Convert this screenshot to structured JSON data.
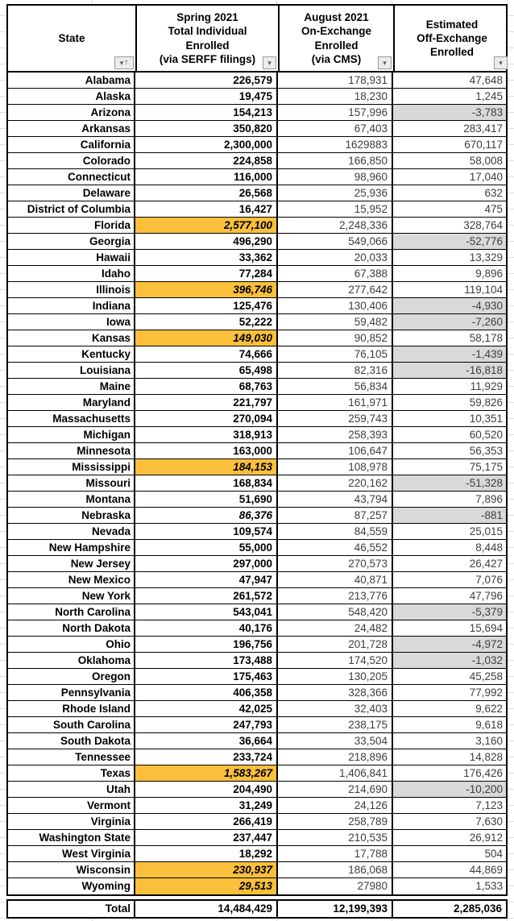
{
  "colors": {
    "highlight_orange": "#FAC03C",
    "negative_gray": "#D9D9D9",
    "border_black": "#000000"
  },
  "table": {
    "columns": [
      {
        "label": "State",
        "filter_icon": "filter-sorted-ascending"
      },
      {
        "label": "Spring 2021\nTotal Individual\nEnrolled\n(via SERFF filings)",
        "filter_icon": "filter-dropdown"
      },
      {
        "label": "August 2021\nOn-Exchange\nEnrolled\n(via CMS)",
        "filter_icon": "filter-dropdown"
      },
      {
        "label": "Estimated\nOff-Exchange\nEnrolled",
        "filter_icon": "filter-dropdown"
      }
    ],
    "rows": [
      {
        "state": "Alabama",
        "spring": "226,579",
        "august": "178,931",
        "estimated": "47,648",
        "spring_style": "normal",
        "estimated_negative": false
      },
      {
        "state": "Alaska",
        "spring": "19,475",
        "august": "18,230",
        "estimated": "1,245",
        "spring_style": "normal",
        "estimated_negative": false
      },
      {
        "state": "Arizona",
        "spring": "154,213",
        "august": "157,996",
        "estimated": "-3,783",
        "spring_style": "normal",
        "estimated_negative": true
      },
      {
        "state": "Arkansas",
        "spring": "350,820",
        "august": "67,403",
        "estimated": "283,417",
        "spring_style": "normal",
        "estimated_negative": false
      },
      {
        "state": "California",
        "spring": "2,300,000",
        "august": "1629883",
        "estimated": "670,117",
        "spring_style": "normal",
        "estimated_negative": false
      },
      {
        "state": "Colorado",
        "spring": "224,858",
        "august": "166,850",
        "estimated": "58,008",
        "spring_style": "normal",
        "estimated_negative": false
      },
      {
        "state": "Connecticut",
        "spring": "116,000",
        "august": "98,960",
        "estimated": "17,040",
        "spring_style": "normal",
        "estimated_negative": false
      },
      {
        "state": "Delaware",
        "spring": "26,568",
        "august": "25,936",
        "estimated": "632",
        "spring_style": "normal",
        "estimated_negative": false
      },
      {
        "state": "District of Columbia",
        "spring": "16,427",
        "august": "15,952",
        "estimated": "475",
        "spring_style": "normal",
        "estimated_negative": false
      },
      {
        "state": "Florida",
        "spring": "2,577,100",
        "august": "2,248,336",
        "estimated": "328,764",
        "spring_style": "highlight",
        "estimated_negative": false
      },
      {
        "state": "Georgia",
        "spring": "496,290",
        "august": "549,066",
        "estimated": "-52,776",
        "spring_style": "normal",
        "estimated_negative": true
      },
      {
        "state": "Hawaii",
        "spring": "33,362",
        "august": "20,033",
        "estimated": "13,329",
        "spring_style": "normal",
        "estimated_negative": false
      },
      {
        "state": "Idaho",
        "spring": "77,284",
        "august": "67,388",
        "estimated": "9,896",
        "spring_style": "normal",
        "estimated_negative": false
      },
      {
        "state": "Illinois",
        "spring": "396,746",
        "august": "277,642",
        "estimated": "119,104",
        "spring_style": "highlight",
        "estimated_negative": false
      },
      {
        "state": "Indiana",
        "spring": "125,476",
        "august": "130,406",
        "estimated": "-4,930",
        "spring_style": "normal",
        "estimated_negative": true
      },
      {
        "state": "Iowa",
        "spring": "52,222",
        "august": "59,482",
        "estimated": "-7,260",
        "spring_style": "normal",
        "estimated_negative": true
      },
      {
        "state": "Kansas",
        "spring": "149,030",
        "august": "90,852",
        "estimated": "58,178",
        "spring_style": "highlight",
        "estimated_negative": false
      },
      {
        "state": "Kentucky",
        "spring": "74,666",
        "august": "76,105",
        "estimated": "-1,439",
        "spring_style": "normal",
        "estimated_negative": true
      },
      {
        "state": "Louisiana",
        "spring": "65,498",
        "august": "82,316",
        "estimated": "-16,818",
        "spring_style": "normal",
        "estimated_negative": true
      },
      {
        "state": "Maine",
        "spring": "68,763",
        "august": "56,834",
        "estimated": "11,929",
        "spring_style": "normal",
        "estimated_negative": false
      },
      {
        "state": "Maryland",
        "spring": "221,797",
        "august": "161,971",
        "estimated": "59,826",
        "spring_style": "normal",
        "estimated_negative": false
      },
      {
        "state": "Massachusetts",
        "spring": "270,094",
        "august": "259,743",
        "estimated": "10,351",
        "spring_style": "normal",
        "estimated_negative": false
      },
      {
        "state": "Michigan",
        "spring": "318,913",
        "august": "258,393",
        "estimated": "60,520",
        "spring_style": "normal",
        "estimated_negative": false
      },
      {
        "state": "Minnesota",
        "spring": "163,000",
        "august": "106,647",
        "estimated": "56,353",
        "spring_style": "normal",
        "estimated_negative": false
      },
      {
        "state": "Mississippi",
        "spring": "184,153",
        "august": "108,978",
        "estimated": "75,175",
        "spring_style": "highlight",
        "estimated_negative": false
      },
      {
        "state": "Missouri",
        "spring": "168,834",
        "august": "220,162",
        "estimated": "-51,328",
        "spring_style": "normal",
        "estimated_negative": true
      },
      {
        "state": "Montana",
        "spring": "51,690",
        "august": "43,794",
        "estimated": "7,896",
        "spring_style": "normal",
        "estimated_negative": false
      },
      {
        "state": "Nebraska",
        "spring": "86,376",
        "august": "87,257",
        "estimated": "-881",
        "spring_style": "italic",
        "estimated_negative": true
      },
      {
        "state": "Nevada",
        "spring": "109,574",
        "august": "84,559",
        "estimated": "25,015",
        "spring_style": "normal",
        "estimated_negative": false
      },
      {
        "state": "New Hampshire",
        "spring": "55,000",
        "august": "46,552",
        "estimated": "8,448",
        "spring_style": "normal",
        "estimated_negative": false
      },
      {
        "state": "New Jersey",
        "spring": "297,000",
        "august": "270,573",
        "estimated": "26,427",
        "spring_style": "normal",
        "estimated_negative": false
      },
      {
        "state": "New Mexico",
        "spring": "47,947",
        "august": "40,871",
        "estimated": "7,076",
        "spring_style": "normal",
        "estimated_negative": false
      },
      {
        "state": "New York",
        "spring": "261,572",
        "august": "213,776",
        "estimated": "47,796",
        "spring_style": "normal",
        "estimated_negative": false
      },
      {
        "state": "North Carolina",
        "spring": "543,041",
        "august": "548,420",
        "estimated": "-5,379",
        "spring_style": "normal",
        "estimated_negative": true
      },
      {
        "state": "North Dakota",
        "spring": "40,176",
        "august": "24,482",
        "estimated": "15,694",
        "spring_style": "normal",
        "estimated_negative": false
      },
      {
        "state": "Ohio",
        "spring": "196,756",
        "august": "201,728",
        "estimated": "-4,972",
        "spring_style": "normal",
        "estimated_negative": true
      },
      {
        "state": "Oklahoma",
        "spring": "173,488",
        "august": "174,520",
        "estimated": "-1,032",
        "spring_style": "normal",
        "estimated_negative": true
      },
      {
        "state": "Oregon",
        "spring": "175,463",
        "august": "130,205",
        "estimated": "45,258",
        "spring_style": "normal",
        "estimated_negative": false
      },
      {
        "state": "Pennsylvania",
        "spring": "406,358",
        "august": "328,366",
        "estimated": "77,992",
        "spring_style": "normal",
        "estimated_negative": false
      },
      {
        "state": "Rhode Island",
        "spring": "42,025",
        "august": "32,403",
        "estimated": "9,622",
        "spring_style": "normal",
        "estimated_negative": false
      },
      {
        "state": "South Carolina",
        "spring": "247,793",
        "august": "238,175",
        "estimated": "9,618",
        "spring_style": "normal",
        "estimated_negative": false
      },
      {
        "state": "South Dakota",
        "spring": "36,664",
        "august": "33,504",
        "estimated": "3,160",
        "spring_style": "normal",
        "estimated_negative": false
      },
      {
        "state": "Tennessee",
        "spring": "233,724",
        "august": "218,896",
        "estimated": "14,828",
        "spring_style": "normal",
        "estimated_negative": false
      },
      {
        "state": "Texas",
        "spring": "1,583,267",
        "august": "1,406,841",
        "estimated": "176,426",
        "spring_style": "highlight",
        "estimated_negative": false
      },
      {
        "state": "Utah",
        "spring": "204,490",
        "august": "214,690",
        "estimated": "-10,200",
        "spring_style": "normal",
        "estimated_negative": true
      },
      {
        "state": "Vermont",
        "spring": "31,249",
        "august": "24,126",
        "estimated": "7,123",
        "spring_style": "normal",
        "estimated_negative": false
      },
      {
        "state": "Virginia",
        "spring": "266,419",
        "august": "258,789",
        "estimated": "7,630",
        "spring_style": "normal",
        "estimated_negative": false
      },
      {
        "state": "Washington State",
        "spring": "237,447",
        "august": "210,535",
        "estimated": "26,912",
        "spring_style": "normal",
        "estimated_negative": false
      },
      {
        "state": "West Virginia",
        "spring": "18,292",
        "august": "17,788",
        "estimated": "504",
        "spring_style": "normal",
        "estimated_negative": false
      },
      {
        "state": "Wisconsin",
        "spring": "230,937",
        "august": "186,068",
        "estimated": "44,869",
        "spring_style": "highlight",
        "estimated_negative": false
      },
      {
        "state": "Wyoming",
        "spring": "29,513",
        "august": "27980",
        "estimated": "1,533",
        "spring_style": "highlight",
        "estimated_negative": false
      }
    ],
    "total": {
      "label": "Total",
      "spring": "14,484,429",
      "august": "12,199,393",
      "estimated": "2,285,036"
    }
  }
}
